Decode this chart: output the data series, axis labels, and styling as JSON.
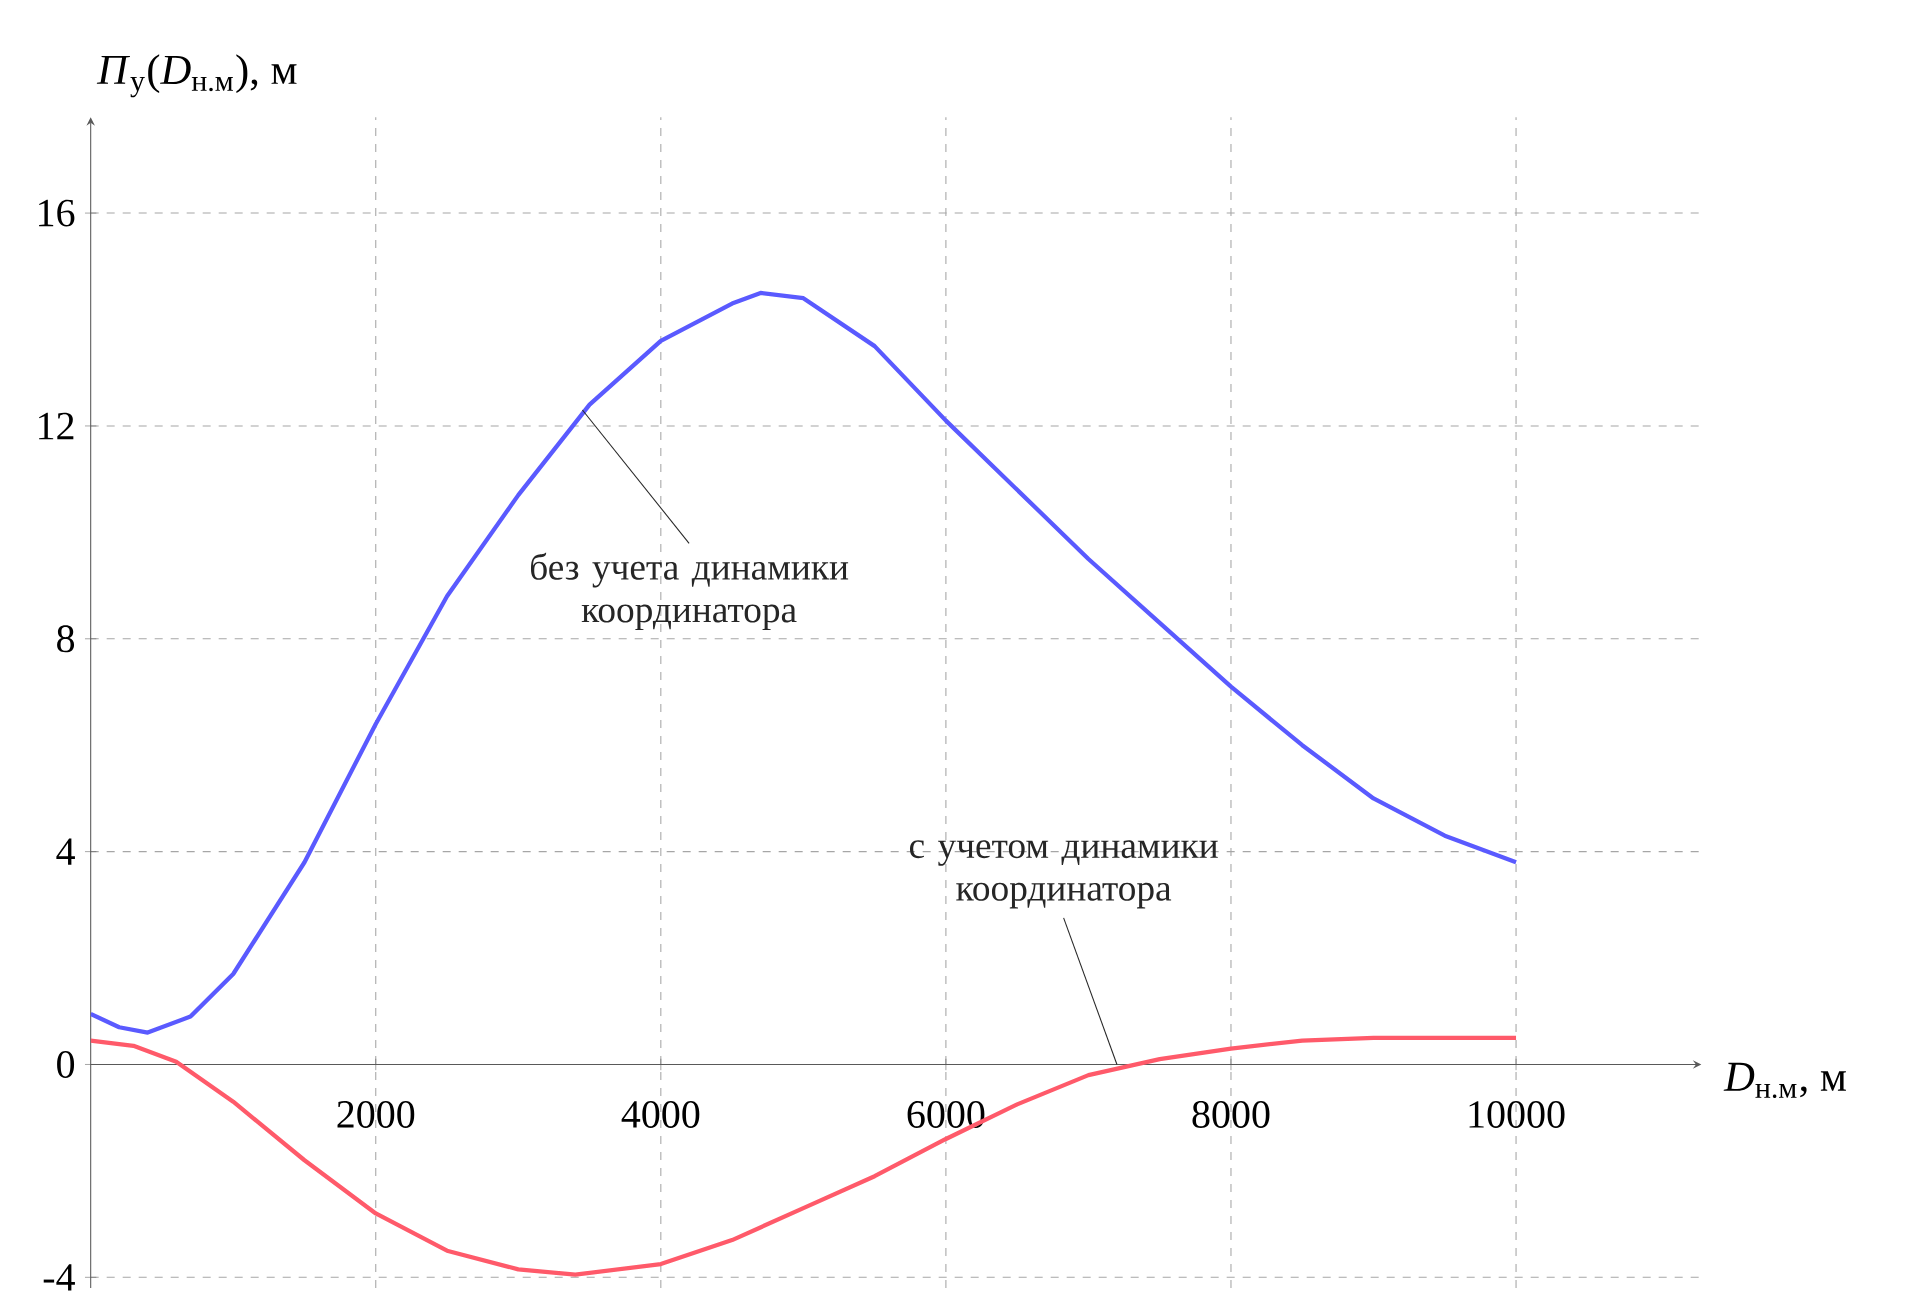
{
  "chart_data": {
    "type": "line",
    "xlabel": "*D*$_{н.м}$, м",
    "ylabel": "*П*$_{у}$(*D*$_{н.м}$), м",
    "xlim": [
      0,
      11300
    ],
    "ylim": [
      -4.2,
      17.8
    ],
    "xticks": [
      2000,
      4000,
      6000,
      8000,
      10000
    ],
    "yticks": [
      -4,
      0,
      4,
      8,
      12,
      16
    ],
    "grid": true,
    "series": [
      {
        "color": "#5a5aff",
        "x": [
          0,
          200,
          400,
          700,
          1000,
          1500,
          2000,
          2500,
          3000,
          3500,
          4000,
          4500,
          4700,
          5000,
          5500,
          6000,
          6500,
          7000,
          7500,
          8000,
          8500,
          9000,
          9500,
          10000
        ],
        "values": [
          0.95,
          0.7,
          0.6,
          0.9,
          1.7,
          3.8,
          6.4,
          8.8,
          10.7,
          12.4,
          13.6,
          14.3,
          14.5,
          14.4,
          13.5,
          12.1,
          10.8,
          9.5,
          8.3,
          7.1,
          6.0,
          5.0,
          4.3,
          3.8
        ]
      },
      {
        "color": "#ff5a6a",
        "x": [
          0,
          300,
          600,
          1000,
          1500,
          2000,
          2500,
          3000,
          3400,
          4000,
          4500,
          5000,
          5500,
          6000,
          6500,
          7000,
          7500,
          8000,
          8500,
          9000,
          10000
        ],
        "values": [
          0.45,
          0.35,
          0.05,
          -0.7,
          -1.8,
          -2.8,
          -3.5,
          -3.85,
          -3.95,
          -3.75,
          -3.3,
          -2.7,
          -2.1,
          -1.4,
          -0.75,
          -0.2,
          0.1,
          0.3,
          0.45,
          0.5,
          0.5
        ]
      }
    ],
    "annotations": [
      {
        "text": "без учета динамики координатора",
        "x": 3450,
        "y": 12.3
      },
      {
        "text": "с учетом динамики координатора",
        "x": 7200,
        "y": 0
      }
    ]
  }
}
